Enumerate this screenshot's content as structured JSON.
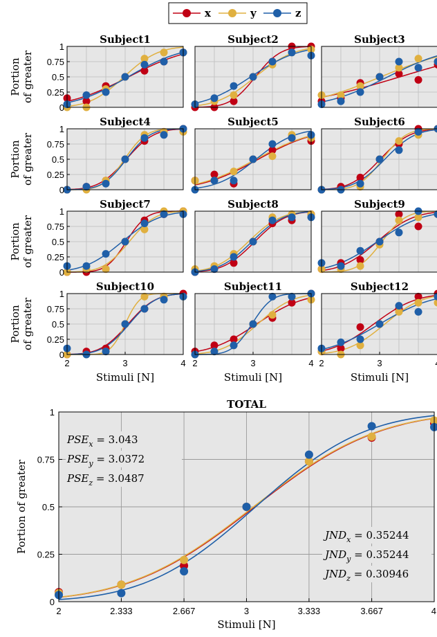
{
  "colors": {
    "x": "#c00014",
    "y": "#e0b040",
    "z": "#1f5fa8",
    "panel_bg": "#e6e6e6",
    "grid": "#bdbdbd"
  },
  "legend": {
    "position": "top-center",
    "entries": [
      "x",
      "y",
      "z"
    ]
  },
  "chart_data": [
    {
      "type": "scatter",
      "layout": "small-multiples 4x3",
      "stimuli": [
        2,
        2.333,
        2.667,
        3,
        3.333,
        3.667,
        4
      ],
      "xlim": [
        2,
        4
      ],
      "ylim": [
        0,
        1
      ],
      "xticks": [
        "2",
        "3",
        "4"
      ],
      "yticks": [
        "0",
        "0.25",
        "0.5",
        "0.75",
        "1"
      ],
      "xlabel": "Stimuli [N]",
      "ylabel_line1": "Portion",
      "ylabel_line2": "of greater",
      "grid": true,
      "series_names": [
        "x",
        "y",
        "z"
      ],
      "panels": [
        {
          "title": "Subject1",
          "x": [
            0.15,
            0.1,
            0.35,
            0.5,
            0.6,
            0.75,
            0.9
          ],
          "y": [
            0.0,
            0.0,
            0.3,
            0.5,
            0.8,
            0.9,
            0.9
          ],
          "z": [
            0.05,
            0.2,
            0.25,
            0.5,
            0.7,
            0.75,
            0.9
          ]
        },
        {
          "title": "Subject2",
          "x": [
            0.0,
            0.0,
            0.1,
            0.5,
            0.75,
            1.0,
            1.0
          ],
          "y": [
            0.05,
            0.1,
            0.2,
            0.5,
            0.7,
            0.9,
            0.95
          ],
          "z": [
            0.05,
            0.15,
            0.35,
            0.5,
            0.75,
            0.9,
            0.85
          ]
        },
        {
          "title": "Subject3",
          "x": [
            0.1,
            0.15,
            0.4,
            0.5,
            0.55,
            0.45,
            0.7
          ],
          "y": [
            0.2,
            0.2,
            0.35,
            0.5,
            0.65,
            0.8,
            0.75
          ],
          "z": [
            0.05,
            0.1,
            0.25,
            0.5,
            0.75,
            0.65,
            0.75
          ]
        },
        {
          "title": "Subject4",
          "x": [
            0.0,
            0.05,
            0.15,
            0.5,
            0.8,
            0.95,
            1.0
          ],
          "y": [
            0.0,
            0.0,
            0.15,
            0.5,
            0.9,
            0.95,
            0.95
          ],
          "z": [
            0.0,
            0.05,
            0.1,
            0.5,
            0.85,
            0.9,
            1.0
          ]
        },
        {
          "title": "Subject5",
          "x": [
            0.15,
            0.25,
            0.1,
            0.5,
            0.65,
            0.85,
            0.8
          ],
          "y": [
            0.15,
            0.15,
            0.3,
            0.5,
            0.55,
            0.9,
            0.85
          ],
          "z": [
            0.0,
            0.15,
            0.15,
            0.5,
            0.75,
            0.85,
            0.9
          ]
        },
        {
          "title": "Subject6",
          "x": [
            0.0,
            0.05,
            0.2,
            0.5,
            0.75,
            1.0,
            1.0
          ],
          "y": [
            0.0,
            0.0,
            0.05,
            0.5,
            0.8,
            0.9,
            1.0
          ],
          "z": [
            0.0,
            0.0,
            0.1,
            0.5,
            0.65,
            0.95,
            1.0
          ]
        },
        {
          "title": "Subject7",
          "x": [
            0.0,
            0.0,
            0.05,
            0.5,
            0.85,
            0.95,
            1.0
          ],
          "y": [
            0.0,
            0.05,
            0.05,
            0.5,
            0.7,
            1.0,
            1.0
          ],
          "z": [
            0.1,
            0.1,
            0.3,
            0.5,
            0.8,
            0.95,
            0.95
          ]
        },
        {
          "title": "Subject8",
          "x": [
            0.0,
            0.05,
            0.15,
            0.5,
            0.8,
            0.85,
            0.95
          ],
          "y": [
            0.05,
            0.1,
            0.3,
            0.5,
            0.9,
            0.95,
            0.95
          ],
          "z": [
            0.0,
            0.05,
            0.25,
            0.5,
            0.85,
            0.9,
            0.9
          ]
        },
        {
          "title": "Subject9",
          "x": [
            0.05,
            0.15,
            0.2,
            0.5,
            0.95,
            0.75,
            0.95
          ],
          "y": [
            0.05,
            0.05,
            0.1,
            0.45,
            0.85,
            0.9,
            0.95
          ],
          "z": [
            0.15,
            0.1,
            0.35,
            0.5,
            0.65,
            1.0,
            0.95
          ]
        },
        {
          "title": "Subject10",
          "x": [
            0.0,
            0.05,
            0.1,
            0.5,
            0.75,
            0.95,
            1.0
          ],
          "y": [
            0.0,
            0.0,
            0.05,
            0.5,
            0.95,
            0.95,
            0.95
          ],
          "z": [
            0.1,
            0.0,
            0.05,
            0.5,
            0.75,
            0.9,
            0.95
          ]
        },
        {
          "title": "Subject11",
          "x": [
            0.05,
            0.15,
            0.25,
            0.5,
            0.6,
            0.85,
            1.0
          ],
          "y": [
            0.0,
            0.05,
            0.15,
            0.5,
            0.65,
            0.95,
            0.9
          ],
          "z": [
            0.0,
            0.05,
            0.15,
            0.5,
            0.95,
            0.95,
            1.0
          ]
        },
        {
          "title": "Subject12",
          "x": [
            0.05,
            0.1,
            0.45,
            0.5,
            0.75,
            0.95,
            1.0
          ],
          "y": [
            0.05,
            0.0,
            0.15,
            0.5,
            0.7,
            0.85,
            0.85
          ],
          "z": [
            0.1,
            0.2,
            0.25,
            0.5,
            0.8,
            0.7,
            0.95
          ]
        }
      ]
    },
    {
      "type": "scatter",
      "title": "TOTAL",
      "xlabel": "Stimuli [N]",
      "ylabel": "Portion of greater",
      "xlim": [
        2,
        4
      ],
      "ylim": [
        0,
        1
      ],
      "xticks": [
        "2",
        "2.333",
        "2.667",
        "3",
        "3.333",
        "3.667",
        "4"
      ],
      "yticks": [
        "0",
        "0.25",
        "0.5",
        "0.75",
        "1"
      ],
      "grid": true,
      "stimuli": [
        2,
        2.333,
        2.667,
        3,
        3.333,
        3.667,
        4
      ],
      "series": [
        {
          "name": "x",
          "values": [
            0.05,
            0.09,
            0.19,
            0.5,
            0.74,
            0.865,
            0.94
          ],
          "pse": 3.043,
          "jnd": 0.35244
        },
        {
          "name": "y",
          "values": [
            0.045,
            0.09,
            0.22,
            0.5,
            0.74,
            0.87,
            0.955
          ],
          "pse": 3.0372,
          "jnd": 0.35244
        },
        {
          "name": "z",
          "values": [
            0.035,
            0.045,
            0.16,
            0.5,
            0.775,
            0.925,
            0.92
          ],
          "pse": 3.0487,
          "jnd": 0.30946
        }
      ],
      "annotations": {
        "pse": [
          {
            "base": "PSE",
            "sub": "x",
            "value": "3.043"
          },
          {
            "base": "PSE",
            "sub": "y",
            "value": "3.0372"
          },
          {
            "base": "PSE",
            "sub": "z",
            "value": "3.0487"
          }
        ],
        "jnd": [
          {
            "base": "JND",
            "sub": "x",
            "value": "0.35244"
          },
          {
            "base": "JND",
            "sub": "y",
            "value": "0.35244"
          },
          {
            "base": "JND",
            "sub": "z",
            "value": "0.30946"
          }
        ]
      }
    }
  ]
}
